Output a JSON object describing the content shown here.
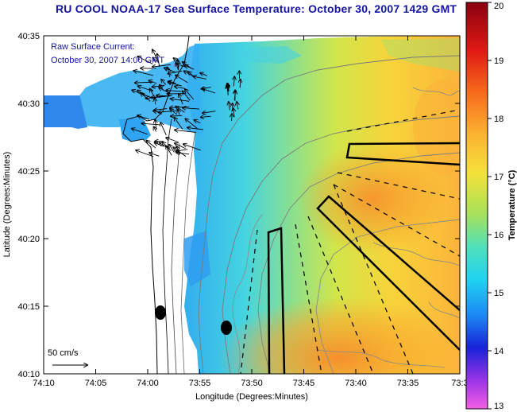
{
  "title": "RU COOL  NOAA-17  Sea Surface Temperature:  October 30, 2007 1429 GMT",
  "current_label": {
    "line1": "Raw Surface Current:",
    "line2": "October 30, 2007 14:00 GMT"
  },
  "scale_label": "50 cm/s",
  "axes": {
    "xlabel": "Longitude (Degrees:Minutes)",
    "ylabel": "Latitude (Degrees:Minutes)",
    "xticks": [
      "74:10",
      "74:05",
      "74:00",
      "73:55",
      "73:50",
      "73:45",
      "73:40",
      "73:35",
      "73:3"
    ],
    "yticks": [
      "40:35",
      "40:30",
      "40:25",
      "40:20",
      "40:15",
      "40:10"
    ]
  },
  "colorbar": {
    "label": "Temperature (°C)",
    "ticks": [
      "20",
      "19",
      "18",
      "17",
      "16",
      "15",
      "14",
      "13"
    ],
    "min": 13,
    "max": 20
  },
  "colors": {
    "title": "#1414a0",
    "land": "#ffffff"
  }
}
